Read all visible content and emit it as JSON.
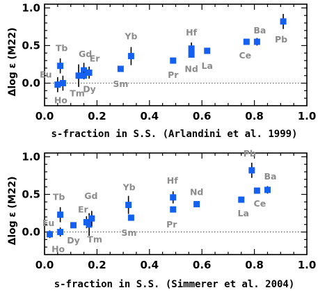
{
  "chart_data": [
    {
      "type": "scatter",
      "xlabel": "s-fraction in S.S. (Arlandini et al. 1999)",
      "ylabel": "Δlog ε (M22)",
      "xlim": [
        0.0,
        1.0
      ],
      "ylim": [
        -0.3,
        1.05
      ],
      "xticks": [
        "0.0",
        "0.2",
        "0.4",
        "0.6",
        "0.8",
        "1.0"
      ],
      "yticks": [
        "0.0",
        "0.5",
        "1.0"
      ],
      "zero_line": "dotted",
      "marker_color": "#1460f0",
      "label_color": "#8c8c8c",
      "points": [
        {
          "label": "Eu",
          "x": 0.05,
          "y": -0.02,
          "err": 0.1
        },
        {
          "label": "Ho",
          "x": 0.07,
          "y": 0.0,
          "err": 0.1
        },
        {
          "label": "Tb",
          "x": 0.06,
          "y": 0.23,
          "err": 0.1
        },
        {
          "label": "Tm",
          "x": 0.13,
          "y": 0.1,
          "err": 0.15
        },
        {
          "label": "Gd",
          "x": 0.15,
          "y": 0.17,
          "err": 0.1
        },
        {
          "label": "Dy",
          "x": 0.15,
          "y": 0.1,
          "err": 0.05
        },
        {
          "label": "Er",
          "x": 0.17,
          "y": 0.14,
          "err": 0.08
        },
        {
          "label": "Sm",
          "x": 0.29,
          "y": 0.19,
          "err": 0.0
        },
        {
          "label": "Yb",
          "x": 0.33,
          "y": 0.36,
          "err": 0.12
        },
        {
          "label": "Pr",
          "x": 0.49,
          "y": 0.3,
          "err": 0.0
        },
        {
          "label": "Hf",
          "x": 0.56,
          "y": 0.46,
          "err": 0.08
        },
        {
          "label": "Nd",
          "x": 0.56,
          "y": 0.38,
          "err": 0.0
        },
        {
          "label": "La",
          "x": 0.62,
          "y": 0.43,
          "err": 0.0
        },
        {
          "label": "Ce",
          "x": 0.77,
          "y": 0.55,
          "err": 0.0
        },
        {
          "label": "Ba",
          "x": 0.81,
          "y": 0.55,
          "err": 0.05
        },
        {
          "label": "Pb",
          "x": 0.91,
          "y": 0.82,
          "err": 0.1
        }
      ]
    },
    {
      "type": "scatter",
      "xlabel": "s-fraction in S.S. (Simmerer et al. 2004)",
      "ylabel": "Δlog ε (M22)",
      "xlim": [
        0.0,
        1.0
      ],
      "ylim": [
        -0.3,
        1.05
      ],
      "xticks": [
        "0.0",
        "0.2",
        "0.4",
        "0.6",
        "0.8",
        "1.0"
      ],
      "yticks": [
        "0.0",
        "0.5",
        "1.0"
      ],
      "zero_line": "dotted",
      "marker_color": "#1460f0",
      "label_color": "#8c8c8c",
      "points": [
        {
          "label": "Eu",
          "x": 0.02,
          "y": -0.03,
          "err": 0.05
        },
        {
          "label": "Ho",
          "x": 0.06,
          "y": 0.0,
          "err": 0.06
        },
        {
          "label": "Tb",
          "x": 0.06,
          "y": 0.23,
          "err": 0.1
        },
        {
          "label": "Dy",
          "x": 0.11,
          "y": 0.09,
          "err": 0.03
        },
        {
          "label": "Er",
          "x": 0.16,
          "y": 0.13,
          "err": 0.08
        },
        {
          "label": "Tm",
          "x": 0.17,
          "y": 0.1,
          "err": 0.15
        },
        {
          "label": "Gd",
          "x": 0.18,
          "y": 0.18,
          "err": 0.1
        },
        {
          "label": "Yb",
          "x": 0.32,
          "y": 0.36,
          "err": 0.12
        },
        {
          "label": "Sm",
          "x": 0.33,
          "y": 0.19,
          "err": 0.0
        },
        {
          "label": "Hf",
          "x": 0.49,
          "y": 0.46,
          "err": 0.08
        },
        {
          "label": "Pr",
          "x": 0.49,
          "y": 0.3,
          "err": 0.0
        },
        {
          "label": "Nd",
          "x": 0.58,
          "y": 0.37,
          "err": 0.0
        },
        {
          "label": "La",
          "x": 0.75,
          "y": 0.43,
          "err": 0.0
        },
        {
          "label": "Pb",
          "x": 0.79,
          "y": 0.82,
          "err": 0.1
        },
        {
          "label": "Ce",
          "x": 0.81,
          "y": 0.55,
          "err": 0.0
        },
        {
          "label": "Ba",
          "x": 0.85,
          "y": 0.56,
          "err": 0.05
        }
      ]
    }
  ]
}
